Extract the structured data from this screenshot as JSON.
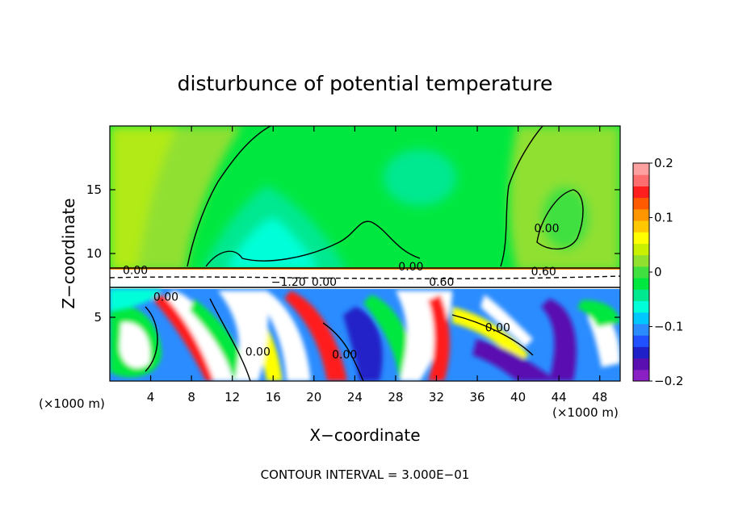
{
  "chart_data": {
    "type": "heatmap",
    "title": "disturbunce of potential temperature",
    "xlabel": "X−coordinate",
    "ylabel": "Z−coordinate",
    "x_unit": "(×1000 m)",
    "z_unit": "(×1000 m)",
    "xlim": [
      0,
      50
    ],
    "ylim": [
      0,
      20
    ],
    "x_ticks": [
      4,
      8,
      12,
      16,
      20,
      24,
      28,
      32,
      36,
      40,
      44,
      48
    ],
    "y_ticks": [
      5,
      10,
      15
    ],
    "colorbar": {
      "range": [
        -0.2,
        0.2
      ],
      "ticks": [
        0.2,
        0.1,
        0,
        -0.1,
        -0.2
      ],
      "tick_labels": [
        "0.2",
        "0.1",
        "0",
        "−0.1",
        "−0.2"
      ],
      "colors": [
        "#8a1fc4",
        "#5a0fb0",
        "#2020c8",
        "#2050ff",
        "#2a8cff",
        "#00c8ff",
        "#00ffd8",
        "#00e890",
        "#00e840",
        "#40e040",
        "#90e030",
        "#c8f000",
        "#ffff00",
        "#ffc800",
        "#ff9600",
        "#ff5a00",
        "#ff1e1e",
        "#ff6e6e",
        "#ffa0a0"
      ]
    },
    "contour_labels": [
      {
        "text": "0.00",
        "x": 2.5,
        "z": 8.7
      },
      {
        "text": "0.00",
        "x": 5.5,
        "z": 6.6
      },
      {
        "text": "−1.20",
        "x": 17.5,
        "z": 7.8
      },
      {
        "text": "0.00",
        "x": 21.0,
        "z": 7.8
      },
      {
        "text": "0.00",
        "x": 14.5,
        "z": 2.3
      },
      {
        "text": "0.00",
        "x": 23.0,
        "z": 2.1
      },
      {
        "text": "0.00",
        "x": 29.5,
        "z": 9.0
      },
      {
        "text": "0.60",
        "x": 32.5,
        "z": 7.8
      },
      {
        "text": "0.00",
        "x": 38.0,
        "z": 4.2
      },
      {
        "text": "0.60",
        "x": 42.5,
        "z": 8.6
      },
      {
        "text": "0.00",
        "x": 42.8,
        "z": 12.0
      }
    ],
    "annotation": "CONTOUR INTERVAL = 3.000E−01"
  }
}
